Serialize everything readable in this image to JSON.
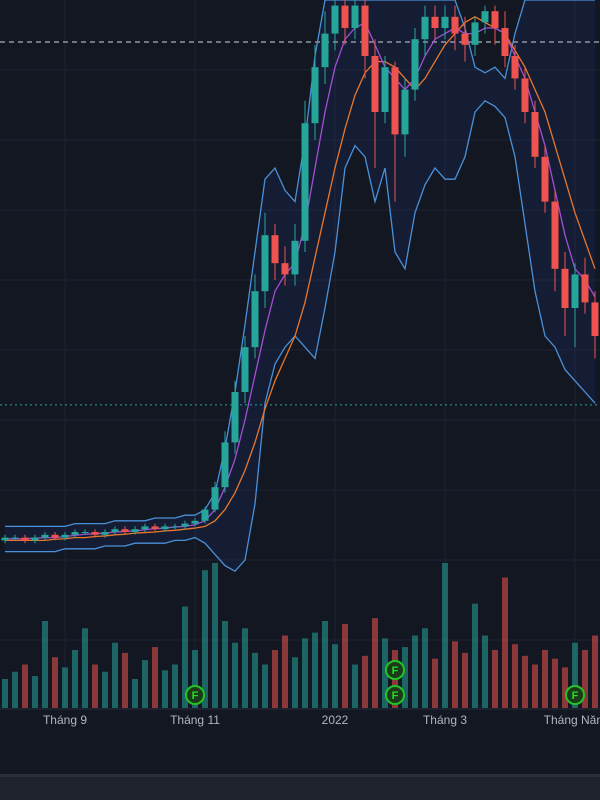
{
  "chart_data": {
    "type": "candlestick",
    "categories": [
      null,
      null,
      null,
      null,
      null,
      null,
      "Tháng 9",
      null,
      null,
      null,
      null,
      null,
      null,
      null,
      null,
      null,
      null,
      null,
      null,
      "Tháng 11",
      null,
      null,
      null,
      null,
      null,
      null,
      null,
      null,
      null,
      null,
      null,
      null,
      null,
      "2022",
      null,
      null,
      null,
      null,
      null,
      null,
      null,
      null,
      null,
      null,
      "Tháng 3",
      null,
      null,
      null,
      null,
      null,
      null,
      null,
      null,
      null,
      null,
      null,
      null,
      "Tháng Năm",
      null,
      null
    ],
    "open": [
      3.5,
      4,
      4,
      3.5,
      4,
      4.5,
      4,
      4.5,
      5,
      5,
      4.5,
      5,
      5.5,
      5,
      5.5,
      6,
      5.5,
      6,
      6,
      6.5,
      7,
      9,
      13,
      21,
      30,
      38,
      48,
      58,
      53,
      51,
      57,
      78,
      88,
      94,
      99,
      95,
      99,
      90,
      80,
      88,
      76,
      84,
      93,
      97,
      95,
      97,
      94,
      92,
      96,
      98,
      95,
      90,
      86,
      80,
      72,
      64,
      52,
      45,
      51,
      46
    ],
    "high": [
      4.5,
      4.5,
      4.5,
      4.5,
      5,
      5,
      5,
      5.5,
      5.5,
      5.5,
      5.5,
      6,
      6,
      6,
      6.5,
      6.5,
      6.5,
      6.5,
      7,
      7.5,
      9.5,
      14,
      23,
      32,
      40,
      51,
      62,
      60,
      56,
      60,
      82,
      92,
      98,
      100,
      100,
      100,
      100,
      93,
      90,
      89,
      86,
      95,
      99,
      99,
      99,
      99,
      97,
      97,
      99,
      99,
      98,
      92,
      88,
      82,
      74,
      66,
      55,
      53,
      54,
      48
    ],
    "low": [
      3,
      3.5,
      3,
      3,
      3.5,
      3.5,
      3.5,
      4,
      4.5,
      4,
      4,
      4.5,
      4.5,
      4.5,
      5,
      5,
      5,
      5.5,
      5.5,
      6,
      6.5,
      8.5,
      12,
      19,
      28,
      36,
      45,
      50,
      49,
      49,
      55,
      75,
      85,
      91,
      92,
      93,
      86,
      70,
      78,
      64,
      72,
      82,
      90,
      93,
      93,
      91,
      89,
      90,
      94,
      92,
      88,
      84,
      78,
      70,
      62,
      48,
      40,
      38,
      44,
      36
    ],
    "close": [
      4,
      4,
      3.5,
      4,
      4.5,
      4,
      4.5,
      5,
      5,
      4.5,
      5,
      5.5,
      5,
      5.5,
      6,
      5.5,
      6,
      6,
      6.5,
      7,
      9,
      13,
      21,
      30,
      38,
      48,
      58,
      53,
      51,
      57,
      78,
      88,
      94,
      99,
      95,
      99,
      90,
      80,
      88,
      76,
      84,
      93,
      97,
      95,
      97,
      94,
      92,
      96,
      98,
      95,
      90,
      86,
      80,
      72,
      64,
      52,
      45,
      51,
      46,
      40
    ],
    "volume": [
      20,
      25,
      30,
      22,
      60,
      35,
      28,
      40,
      55,
      30,
      25,
      45,
      38,
      20,
      33,
      42,
      26,
      30,
      70,
      40,
      95,
      100,
      60,
      45,
      55,
      38,
      30,
      40,
      50,
      35,
      48,
      52,
      60,
      44,
      58,
      30,
      36,
      62,
      48,
      40,
      42,
      50,
      55,
      34,
      100,
      46,
      38,
      72,
      50,
      40,
      90,
      44,
      36,
      30,
      40,
      34,
      28,
      45,
      40,
      50
    ],
    "lines": [
      {
        "color": "#4a90d9",
        "values": [
          6,
          6,
          6,
          6,
          6,
          6,
          6,
          6.5,
          6.5,
          6.5,
          6.5,
          7,
          7,
          7,
          7,
          7.5,
          7.5,
          7.5,
          8,
          8,
          9,
          12,
          20,
          30,
          42,
          55,
          68,
          70,
          66,
          64,
          75,
          90,
          100,
          100,
          100,
          100,
          100,
          100,
          100,
          100,
          100,
          100,
          100,
          100,
          100,
          100,
          95,
          88,
          87,
          88,
          86,
          94,
          100,
          100,
          100,
          100,
          100,
          100,
          100,
          100
        ]
      },
      {
        "color": "#4a90d9",
        "values": [
          1.5,
          1.5,
          1.5,
          1.5,
          1.5,
          1.5,
          2,
          2,
          2,
          2,
          2.5,
          2.5,
          2.5,
          3,
          3,
          3,
          3,
          3.5,
          3.5,
          4,
          3,
          1,
          -1,
          -2,
          0,
          10,
          28,
          35,
          38,
          40,
          38,
          36,
          45,
          55,
          70,
          74,
          72,
          64,
          70,
          55,
          52,
          62,
          67,
          70,
          68,
          68,
          72,
          80,
          82,
          81,
          79,
          72,
          60,
          48,
          40,
          38,
          34,
          32,
          30,
          28
        ]
      },
      {
        "color": "#e8772e",
        "values": [
          3.5,
          3.5,
          3.5,
          3.5,
          3.5,
          3.7,
          3.8,
          4,
          4,
          4.2,
          4.3,
          4.5,
          4.6,
          4.8,
          4.9,
          5,
          5.2,
          5.3,
          5.5,
          5.7,
          6,
          7,
          9,
          12,
          16,
          21,
          27,
          32,
          36,
          40,
          46,
          54,
          62,
          70,
          77,
          83,
          87,
          89,
          89,
          88,
          86,
          84,
          86,
          89,
          92,
          94,
          96,
          97,
          96,
          95,
          94,
          91,
          88,
          84,
          80,
          74,
          68,
          62,
          57,
          52
        ]
      },
      {
        "color": "#a24fd6",
        "values": [
          3.8,
          3.8,
          3.8,
          3.9,
          4,
          4,
          4.2,
          4.4,
          4.6,
          4.7,
          4.8,
          5,
          5.1,
          5.2,
          5.4,
          5.6,
          5.7,
          5.9,
          6,
          6.3,
          7,
          9,
          13,
          18,
          25,
          33,
          41,
          48,
          51,
          53,
          60,
          70,
          80,
          88,
          93,
          95,
          96,
          92,
          88,
          86,
          84,
          86,
          90,
          93,
          94,
          95,
          94,
          94,
          95,
          95,
          94,
          90,
          86,
          80,
          74,
          66,
          58,
          52,
          50,
          47
        ]
      }
    ],
    "levels": [
      {
        "value": 92.5,
        "color": "#d1d4dc"
      },
      {
        "value": 27.7,
        "color": "#26a69a"
      }
    ],
    "events": [
      {
        "index": 19,
        "label": "F"
      },
      {
        "index": 39,
        "label": "F"
      },
      {
        "index": 39,
        "label": "F"
      },
      {
        "index": 57,
        "label": "F"
      }
    ],
    "up_color": "#26a69a",
    "down_color": "#ef5350",
    "ylim": [
      0,
      100
    ],
    "volume_ylim": [
      0,
      100
    ]
  }
}
